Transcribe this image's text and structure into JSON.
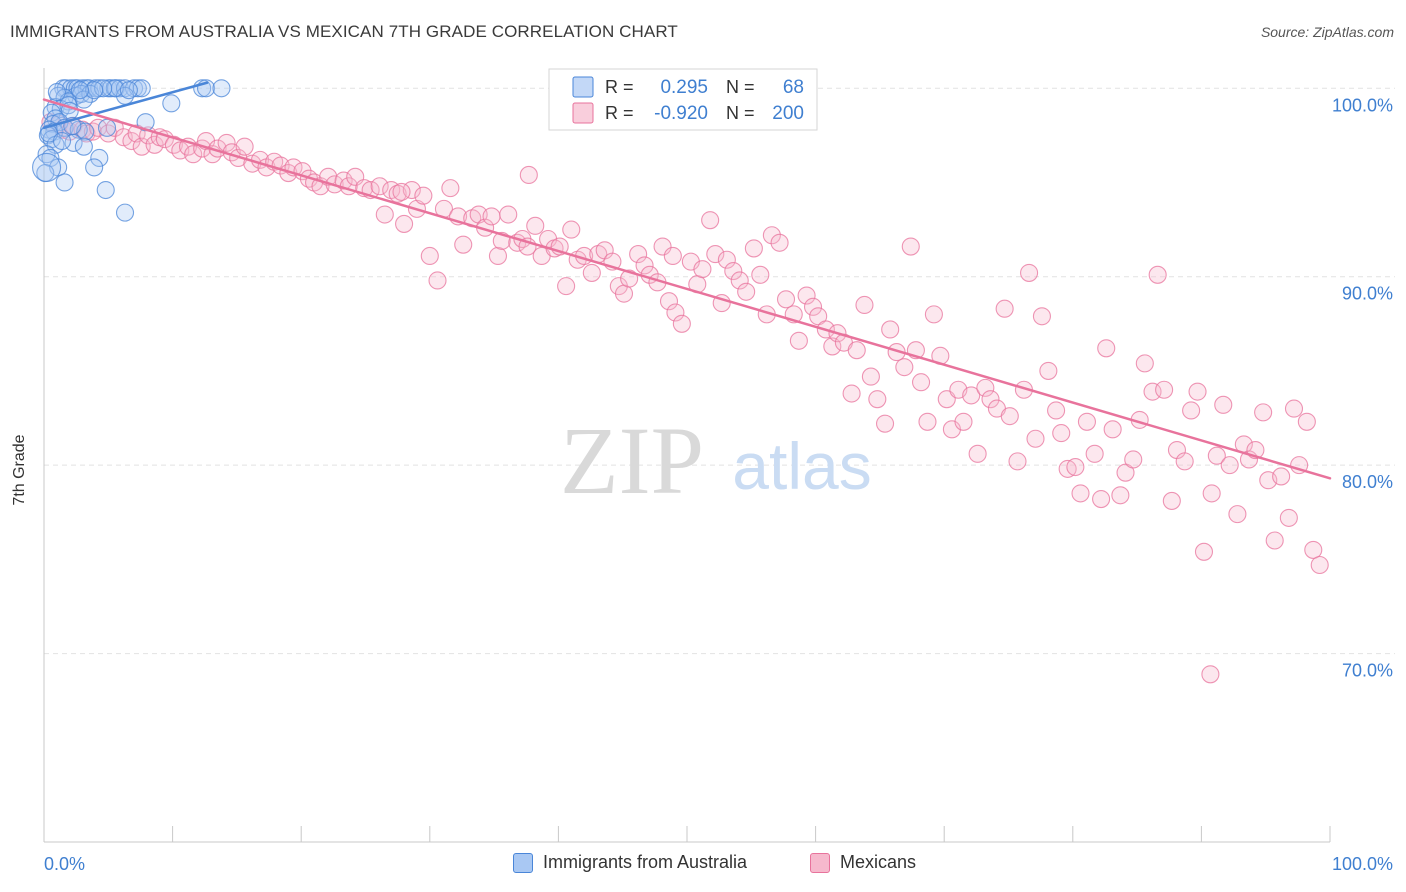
{
  "header": {
    "title": "IMMIGRANTS FROM AUSTRALIA VS MEXICAN 7TH GRADE CORRELATION CHART",
    "source": "Source: ZipAtlas.com"
  },
  "watermark": {
    "zip": "ZIP",
    "atlas": "atlas"
  },
  "colors": {
    "blue": "#4a86d8",
    "blue_fill": "#a9c8f3",
    "pink": "#e8739c",
    "pink_fill": "#f6b9cd",
    "axis_label": "#3f7fd0",
    "grid": "#e2e2e2"
  },
  "legend": {
    "rows": [
      {
        "r_label": "R =",
        "r_value": "0.295",
        "n_label": "N =",
        "n_value": "68",
        "color": "blue"
      },
      {
        "r_label": "R =",
        "r_value": "-0.920",
        "n_label": "N =",
        "n_value": "200",
        "color": "pink"
      }
    ],
    "position": "top-center"
  },
  "chart_data": {
    "type": "scatter",
    "title": "IMMIGRANTS FROM AUSTRALIA VS MEXICAN 7TH GRADE CORRELATION CHART",
    "xlabel": "",
    "ylabel": "7th Grade",
    "xlim": [
      0,
      100
    ],
    "ylim": [
      60,
      101.5
    ],
    "x_tick_labels": [
      "0.0%",
      "100.0%"
    ],
    "y_ticks": [
      {
        "value": 100,
        "label": "100.0%"
      },
      {
        "value": 90,
        "label": "90.0%"
      },
      {
        "value": 80,
        "label": "80.0%"
      },
      {
        "value": 70,
        "label": "70.0%"
      }
    ],
    "grid": true,
    "series": [
      {
        "name": "Immigrants from Australia",
        "color": "blue",
        "r": 0.295,
        "n": 68,
        "trend": [
          [
            0.0,
            97.9
          ],
          [
            12.7,
            100.3
          ]
        ],
        "points": [
          [
            1.5,
            100.0
          ],
          [
            1.7,
            100.0
          ],
          [
            2.1,
            100.0
          ],
          [
            2.4,
            100.0
          ],
          [
            2.6,
            100.0
          ],
          [
            3.0,
            100.0
          ],
          [
            3.3,
            100.0
          ],
          [
            3.5,
            100.0
          ],
          [
            4.0,
            100.0
          ],
          [
            4.3,
            100.0
          ],
          [
            5.0,
            100.0
          ],
          [
            5.2,
            100.0
          ],
          [
            5.6,
            100.0
          ],
          [
            5.9,
            100.0
          ],
          [
            6.3,
            100.0
          ],
          [
            7.0,
            100.0
          ],
          [
            7.3,
            100.0
          ],
          [
            7.6,
            100.0
          ],
          [
            12.3,
            100.0
          ],
          [
            12.6,
            100.0
          ],
          [
            13.8,
            100.0
          ],
          [
            1.1,
            99.6
          ],
          [
            2.5,
            99.6
          ],
          [
            2.9,
            99.7
          ],
          [
            3.6,
            99.7
          ],
          [
            6.3,
            99.6
          ],
          [
            1.6,
            99.5
          ],
          [
            1.9,
            99.3
          ],
          [
            3.1,
            99.4
          ],
          [
            9.9,
            99.2
          ],
          [
            0.9,
            99.0
          ],
          [
            1.3,
            98.9
          ],
          [
            1.9,
            99.1
          ],
          [
            2.0,
            98.8
          ],
          [
            0.6,
            98.7
          ],
          [
            0.9,
            98.4
          ],
          [
            0.7,
            98.1
          ],
          [
            1.2,
            98.2
          ],
          [
            7.9,
            98.2
          ],
          [
            0.4,
            97.8
          ],
          [
            0.8,
            97.7
          ],
          [
            1.6,
            97.9
          ],
          [
            2.7,
            97.8
          ],
          [
            3.2,
            97.7
          ],
          [
            4.9,
            97.9
          ],
          [
            0.3,
            97.5
          ],
          [
            0.6,
            97.3
          ],
          [
            0.9,
            97.0
          ],
          [
            2.3,
            97.1
          ],
          [
            3.1,
            96.9
          ],
          [
            0.2,
            96.5
          ],
          [
            0.5,
            96.3
          ],
          [
            4.3,
            96.3
          ],
          [
            1.1,
            95.8
          ],
          [
            3.9,
            95.8
          ],
          [
            0.1,
            95.5
          ],
          [
            1.6,
            95.0
          ],
          [
            4.8,
            94.6
          ],
          [
            6.3,
            93.4
          ],
          [
            0.4,
            97.6
          ],
          [
            2.2,
            98.0
          ],
          [
            1.4,
            97.2
          ],
          [
            5.5,
            100.0
          ],
          [
            4.6,
            100.0
          ],
          [
            3.9,
            99.9
          ],
          [
            1.0,
            99.8
          ],
          [
            2.8,
            99.9
          ],
          [
            6.6,
            99.9
          ]
        ]
      },
      {
        "name": "Mexicans",
        "color": "pink",
        "r": -0.92,
        "n": 200,
        "trend": [
          [
            0.0,
            99.4
          ],
          [
            100.0,
            79.3
          ]
        ],
        "points": [
          [
            0.5,
            98.2
          ],
          [
            1.2,
            98.1
          ],
          [
            1.5,
            97.8
          ],
          [
            2.0,
            97.7
          ],
          [
            2.3,
            98.0
          ],
          [
            3.0,
            97.8
          ],
          [
            3.3,
            97.6
          ],
          [
            3.8,
            97.7
          ],
          [
            4.2,
            97.9
          ],
          [
            5.0,
            97.6
          ],
          [
            5.5,
            97.9
          ],
          [
            6.2,
            97.4
          ],
          [
            6.8,
            97.2
          ],
          [
            7.2,
            97.6
          ],
          [
            7.6,
            96.9
          ],
          [
            8.1,
            97.5
          ],
          [
            8.6,
            97.0
          ],
          [
            9.0,
            97.4
          ],
          [
            9.4,
            97.3
          ],
          [
            10.1,
            97.0
          ],
          [
            10.6,
            96.7
          ],
          [
            11.2,
            96.9
          ],
          [
            11.6,
            96.5
          ],
          [
            12.3,
            96.8
          ],
          [
            12.6,
            97.2
          ],
          [
            13.1,
            96.5
          ],
          [
            13.5,
            96.8
          ],
          [
            14.2,
            97.1
          ],
          [
            14.6,
            96.6
          ],
          [
            15.1,
            96.3
          ],
          [
            15.6,
            96.9
          ],
          [
            16.2,
            96.0
          ],
          [
            16.8,
            96.2
          ],
          [
            17.3,
            95.8
          ],
          [
            17.9,
            96.1
          ],
          [
            18.4,
            95.9
          ],
          [
            19.0,
            95.5
          ],
          [
            19.4,
            95.8
          ],
          [
            20.1,
            95.6
          ],
          [
            20.6,
            95.2
          ],
          [
            21.0,
            95.0
          ],
          [
            21.5,
            94.8
          ],
          [
            22.1,
            95.3
          ],
          [
            22.6,
            94.9
          ],
          [
            23.3,
            95.1
          ],
          [
            23.7,
            94.8
          ],
          [
            24.2,
            95.3
          ],
          [
            24.9,
            94.7
          ],
          [
            25.4,
            94.6
          ],
          [
            26.1,
            94.8
          ],
          [
            26.5,
            93.3
          ],
          [
            27.0,
            94.6
          ],
          [
            27.5,
            94.4
          ],
          [
            28.0,
            92.8
          ],
          [
            28.6,
            94.6
          ],
          [
            29.0,
            93.6
          ],
          [
            29.5,
            94.3
          ],
          [
            30.0,
            91.1
          ],
          [
            30.6,
            89.8
          ],
          [
            31.1,
            93.6
          ],
          [
            31.6,
            94.7
          ],
          [
            32.2,
            93.2
          ],
          [
            32.6,
            91.7
          ],
          [
            33.3,
            93.1
          ],
          [
            33.8,
            93.3
          ],
          [
            34.3,
            92.6
          ],
          [
            34.8,
            93.2
          ],
          [
            35.3,
            91.1
          ],
          [
            35.6,
            91.9
          ],
          [
            36.1,
            93.3
          ],
          [
            36.8,
            91.8
          ],
          [
            37.2,
            92.0
          ],
          [
            37.6,
            91.6
          ],
          [
            38.2,
            92.7
          ],
          [
            38.7,
            91.1
          ],
          [
            39.2,
            92.0
          ],
          [
            39.7,
            91.5
          ],
          [
            40.1,
            91.6
          ],
          [
            40.6,
            89.5
          ],
          [
            41.0,
            92.5
          ],
          [
            41.5,
            90.9
          ],
          [
            42.0,
            91.1
          ],
          [
            42.6,
            90.2
          ],
          [
            43.1,
            91.2
          ],
          [
            43.6,
            91.4
          ],
          [
            44.2,
            90.8
          ],
          [
            44.7,
            89.5
          ],
          [
            45.1,
            89.1
          ],
          [
            45.5,
            89.9
          ],
          [
            46.2,
            91.2
          ],
          [
            46.7,
            90.6
          ],
          [
            47.1,
            90.1
          ],
          [
            47.7,
            89.7
          ],
          [
            48.1,
            91.6
          ],
          [
            48.6,
            88.7
          ],
          [
            49.1,
            88.1
          ],
          [
            49.6,
            87.5
          ],
          [
            50.3,
            90.8
          ],
          [
            50.8,
            89.6
          ],
          [
            51.2,
            90.4
          ],
          [
            51.8,
            93.0
          ],
          [
            52.2,
            91.2
          ],
          [
            52.7,
            88.6
          ],
          [
            53.1,
            90.9
          ],
          [
            53.6,
            90.3
          ],
          [
            54.1,
            89.8
          ],
          [
            54.6,
            89.2
          ],
          [
            55.2,
            91.5
          ],
          [
            55.7,
            90.1
          ],
          [
            56.2,
            88.0
          ],
          [
            56.6,
            92.2
          ],
          [
            57.2,
            91.8
          ],
          [
            57.7,
            88.8
          ],
          [
            58.3,
            88.0
          ],
          [
            58.7,
            86.6
          ],
          [
            59.3,
            89.0
          ],
          [
            59.8,
            88.4
          ],
          [
            60.2,
            87.9
          ],
          [
            60.8,
            87.2
          ],
          [
            61.3,
            86.3
          ],
          [
            61.7,
            87.0
          ],
          [
            62.2,
            86.5
          ],
          [
            62.8,
            83.8
          ],
          [
            63.2,
            86.1
          ],
          [
            63.8,
            88.5
          ],
          [
            64.3,
            84.7
          ],
          [
            64.8,
            83.5
          ],
          [
            65.4,
            82.2
          ],
          [
            65.8,
            87.2
          ],
          [
            66.3,
            86.0
          ],
          [
            66.9,
            85.2
          ],
          [
            67.4,
            91.6
          ],
          [
            67.8,
            86.1
          ],
          [
            68.2,
            84.4
          ],
          [
            68.7,
            82.3
          ],
          [
            69.2,
            88.0
          ],
          [
            69.7,
            85.8
          ],
          [
            70.2,
            83.5
          ],
          [
            70.6,
            81.9
          ],
          [
            71.1,
            84.0
          ],
          [
            71.5,
            82.3
          ],
          [
            72.1,
            83.7
          ],
          [
            72.6,
            80.6
          ],
          [
            73.2,
            84.1
          ],
          [
            73.6,
            83.5
          ],
          [
            74.1,
            83.0
          ],
          [
            74.7,
            88.3
          ],
          [
            75.1,
            82.6
          ],
          [
            75.7,
            80.2
          ],
          [
            76.2,
            84.0
          ],
          [
            76.6,
            90.2
          ],
          [
            77.1,
            81.4
          ],
          [
            77.6,
            87.9
          ],
          [
            78.1,
            85.0
          ],
          [
            78.7,
            82.9
          ],
          [
            79.1,
            81.7
          ],
          [
            79.6,
            79.8
          ],
          [
            80.2,
            79.9
          ],
          [
            80.6,
            78.5
          ],
          [
            81.1,
            82.3
          ],
          [
            81.7,
            80.6
          ],
          [
            82.2,
            78.2
          ],
          [
            82.6,
            86.2
          ],
          [
            83.1,
            81.9
          ],
          [
            83.7,
            78.4
          ],
          [
            84.1,
            79.6
          ],
          [
            84.7,
            80.3
          ],
          [
            85.2,
            82.4
          ],
          [
            85.6,
            85.4
          ],
          [
            86.2,
            83.9
          ],
          [
            86.6,
            90.1
          ],
          [
            87.1,
            84.0
          ],
          [
            87.7,
            78.1
          ],
          [
            88.1,
            80.8
          ],
          [
            88.7,
            80.2
          ],
          [
            89.2,
            82.9
          ],
          [
            89.7,
            83.9
          ],
          [
            90.2,
            75.4
          ],
          [
            90.8,
            78.5
          ],
          [
            91.2,
            80.5
          ],
          [
            91.7,
            83.2
          ],
          [
            92.2,
            80.0
          ],
          [
            92.8,
            77.4
          ],
          [
            93.3,
            81.1
          ],
          [
            93.7,
            80.3
          ],
          [
            94.2,
            80.8
          ],
          [
            94.8,
            82.8
          ],
          [
            95.2,
            79.2
          ],
          [
            95.7,
            76.0
          ],
          [
            96.2,
            79.4
          ],
          [
            96.8,
            77.2
          ],
          [
            97.2,
            83.0
          ],
          [
            97.6,
            80.0
          ],
          [
            98.2,
            82.3
          ],
          [
            98.7,
            75.5
          ],
          [
            99.2,
            74.7
          ],
          [
            90.7,
            68.9
          ],
          [
            37.7,
            95.4
          ],
          [
            27.8,
            94.5
          ],
          [
            48.9,
            91.1
          ]
        ]
      }
    ]
  },
  "bottom_legend": {
    "items": [
      {
        "label": "Immigrants from Australia",
        "color": "blue"
      },
      {
        "label": "Mexicans",
        "color": "pink"
      }
    ]
  }
}
